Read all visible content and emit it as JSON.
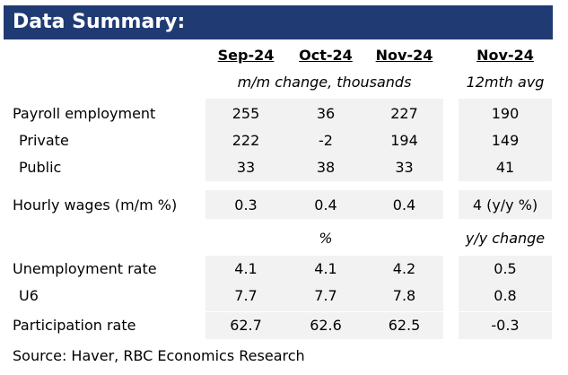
{
  "title": "Data Summary:",
  "headers": {
    "col1": "Sep-24",
    "col2": "Oct-24",
    "col3": "Nov-24",
    "col4": "Nov-24"
  },
  "subheaders": {
    "mm_change": "m/m change, thousands",
    "avg_12mth": "12mth avg",
    "percent": "%",
    "yy_change": "y/y change"
  },
  "rows": {
    "payroll": {
      "label": "Payroll employment",
      "v1": "255",
      "v2": "36",
      "v3": "227",
      "v4": "190"
    },
    "private": {
      "label": "Private",
      "v1": "222",
      "v2": "-2",
      "v3": "194",
      "v4": "149"
    },
    "public": {
      "label": "Public",
      "v1": "33",
      "v2": "38",
      "v3": "33",
      "v4": "41"
    },
    "wages": {
      "label": "Hourly wages (m/m %)",
      "v1": "0.3",
      "v2": "0.4",
      "v3": "0.4",
      "v4": "4 (y/y %)"
    },
    "unemployment": {
      "label": "Unemployment rate",
      "v1": "4.1",
      "v2": "4.1",
      "v3": "4.2",
      "v4": "0.5"
    },
    "u6": {
      "label": "U6",
      "v1": "7.7",
      "v2": "7.7",
      "v3": "7.8",
      "v4": "0.8"
    },
    "participation": {
      "label": "Participation rate",
      "v1": "62.7",
      "v2": "62.6",
      "v3": "62.5",
      "v4": "-0.3"
    }
  },
  "source": "Source:  Haver, RBC Economics Research",
  "colors": {
    "title_bg": "#203a73",
    "title_text": "#ffffff",
    "cell_bg": "#f2f2f2"
  }
}
